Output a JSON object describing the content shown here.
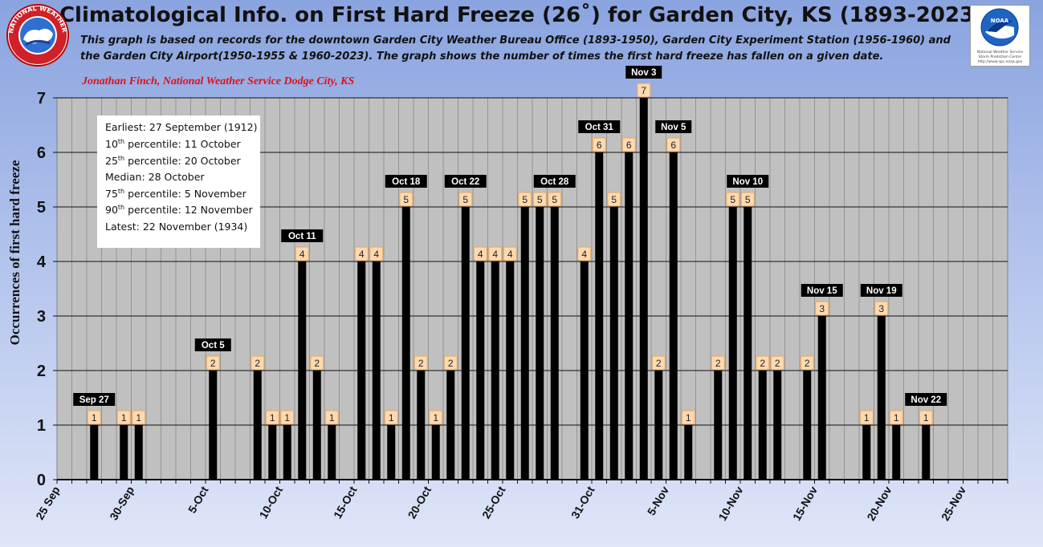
{
  "header": {
    "title": "Climatological Info. on First Hard Freeze (26˚) for Garden City, KS (1893-2023)",
    "description": "This graph is based on records for the downtown Garden City Weather Bureau Office (1893-1950), Garden City Experiment Station (1956-1960) and the Garden City Airport(1950-1955 & 1960-2023). The graph shows the number of times the first hard freeze has fallen on a given date.",
    "author": "Jonathan Finch, National Weather Service Dodge City, KS"
  },
  "logos": {
    "nws_text": "NATIONAL WEATHER SERVICE",
    "noaa_text": "NOAA",
    "noaa_caption1": "National Weather Service",
    "noaa_caption2": "Storm Prediction Center",
    "noaa_caption3": "http://www.spc.noaa.gov"
  },
  "stats": {
    "earliest": "Earliest: 27 September (1912)",
    "p10_pre": "10",
    "p10_sup": "th",
    "p10_post": " percentile: 11 October",
    "p25_pre": "25",
    "p25_sup": "th",
    "p25_post": " percentile: 20 October",
    "median": "Median: 28 October",
    "p75_pre": "75",
    "p75_sup": "th",
    "p75_post": " percentile: 5 November",
    "p90_pre": "90",
    "p90_sup": "th",
    "p90_post": " percentile: 12 November",
    "latest": "Latest: 22 November (1934)"
  },
  "colors": {
    "plot_bg": "#c0c0c0",
    "bar": "#000000",
    "label_box": "#fdd9b0",
    "callout_bg": "#000000",
    "callout_text": "#ffffff",
    "author": "#e0101a"
  },
  "chart_data": {
    "type": "bar",
    "ylabel": "Occurrences of first hard freeze",
    "xlabel": "",
    "ylim": [
      0,
      7
    ],
    "yticks": [
      0,
      1,
      2,
      3,
      4,
      5,
      6,
      7
    ],
    "grid": true,
    "categories": [
      "25 Sep",
      "26 Sep",
      "27 Sep",
      "28 Sep",
      "29 Sep",
      "30 Sep",
      "1 Oct",
      "2 Oct",
      "3 Oct",
      "4 Oct",
      "5 Oct",
      "6 Oct",
      "7 Oct",
      "8 Oct",
      "9 Oct",
      "10 Oct",
      "11 Oct",
      "12 Oct",
      "13 Oct",
      "14 Oct",
      "15 Oct",
      "16 Oct",
      "17 Oct",
      "18 Oct",
      "19 Oct",
      "20 Oct",
      "21 Oct",
      "22 Oct",
      "23 Oct",
      "24 Oct",
      "25 Oct",
      "26 Oct",
      "27 Oct",
      "28 Oct",
      "29 Oct",
      "30 Oct",
      "31 Oct",
      "1 Nov",
      "2 Nov",
      "3 Nov",
      "4 Nov",
      "5 Nov",
      "6 Nov",
      "7 Nov",
      "8 Nov",
      "9 Nov",
      "10 Nov",
      "11 Nov",
      "12 Nov",
      "13 Nov",
      "14 Nov",
      "15 Nov",
      "16 Nov",
      "17 Nov",
      "18 Nov",
      "19 Nov",
      "20 Nov",
      "21 Nov",
      "22 Nov",
      "23 Nov",
      "24 Nov",
      "25 Nov",
      "26 Nov",
      "27 Nov"
    ],
    "values": [
      0,
      0,
      1,
      0,
      1,
      1,
      0,
      0,
      0,
      0,
      2,
      0,
      0,
      2,
      1,
      1,
      4,
      2,
      1,
      0,
      4,
      4,
      1,
      5,
      2,
      1,
      2,
      5,
      4,
      4,
      4,
      5,
      5,
      5,
      0,
      4,
      6,
      5,
      6,
      7,
      2,
      6,
      1,
      0,
      2,
      5,
      5,
      2,
      2,
      0,
      2,
      3,
      0,
      0,
      1,
      3,
      1,
      0,
      1,
      0,
      0,
      0,
      0,
      0
    ],
    "tick_labels": [
      {
        "index": 0,
        "text": "25 Sep"
      },
      {
        "index": 5,
        "text": "30-Sep"
      },
      {
        "index": 10,
        "text": "5-Oct"
      },
      {
        "index": 15,
        "text": "10-Oct"
      },
      {
        "index": 20,
        "text": "15-Oct"
      },
      {
        "index": 25,
        "text": "20-Oct"
      },
      {
        "index": 30,
        "text": "25-Oct"
      },
      {
        "index": 36,
        "text": "31-Oct"
      },
      {
        "index": 41,
        "text": "5-Nov"
      },
      {
        "index": 46,
        "text": "10-Nov"
      },
      {
        "index": 51,
        "text": "15-Nov"
      },
      {
        "index": 56,
        "text": "20-Nov"
      },
      {
        "index": 61,
        "text": "25-Nov"
      }
    ],
    "callouts": [
      {
        "index": 2,
        "text": "Sep 27"
      },
      {
        "index": 10,
        "text": "Oct 5"
      },
      {
        "index": 16,
        "text": "Oct 11"
      },
      {
        "index": 23,
        "text": "Oct 18"
      },
      {
        "index": 27,
        "text": "Oct 22"
      },
      {
        "index": 33,
        "text": "Oct 28"
      },
      {
        "index": 36,
        "text": "Oct 31"
      },
      {
        "index": 39,
        "text": "Nov 3"
      },
      {
        "index": 41,
        "text": "Nov 5"
      },
      {
        "index": 46,
        "text": "Nov 10"
      },
      {
        "index": 51,
        "text": "Nov 15"
      },
      {
        "index": 55,
        "text": "Nov 19"
      },
      {
        "index": 58,
        "text": "Nov 22"
      }
    ]
  }
}
